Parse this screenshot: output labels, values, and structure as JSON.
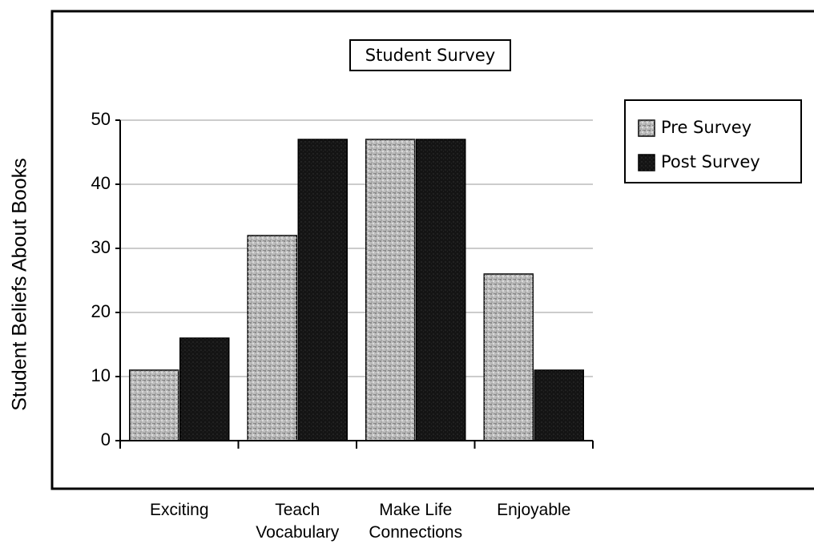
{
  "chart_data": {
    "type": "bar",
    "title": "Student Survey",
    "y_label": "Student Beliefs About Books",
    "categories": [
      "Exciting",
      "Teach\nVocabulary",
      "Make Life\nConnections",
      "Enjoyable"
    ],
    "series": [
      {
        "name": "Pre Survey",
        "color": "#bdbdbd",
        "values": [
          11,
          32,
          47,
          26
        ]
      },
      {
        "name": "Post Survey",
        "color": "#141414",
        "values": [
          16,
          47,
          47,
          11
        ]
      }
    ],
    "ylim": [
      0,
      50
    ],
    "yticks": [
      0,
      10,
      20,
      30,
      40,
      50
    ],
    "grid": true,
    "legend": "right"
  }
}
